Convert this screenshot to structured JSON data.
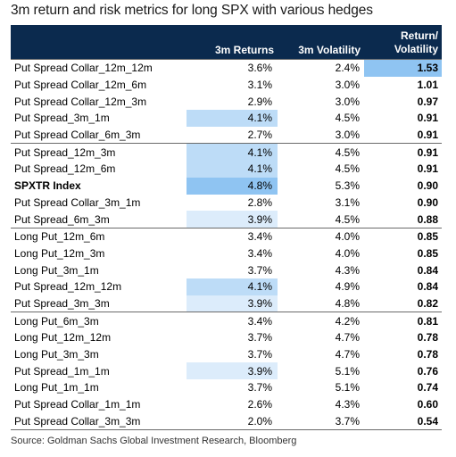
{
  "title": "3m return and risk metrics for long SPX with various hedges",
  "headers": {
    "name": "",
    "returns": "3m Returns",
    "volatility": "3m Volatility",
    "ratio_line1": "Return/",
    "ratio_line2": "Volatility"
  },
  "colors": {
    "header_bg": "#0b2a4e",
    "highlight_strong": "#8fc4f2",
    "highlight_medium": "#bddcf7",
    "highlight_light": "#dcecfb"
  },
  "rows": [
    {
      "name": "Put Spread Collar_12m_12m",
      "returns": "3.6%",
      "volatility": "2.4%",
      "ratio": "1.53",
      "group_start": true
    },
    {
      "name": "Put Spread Collar_12m_6m",
      "returns": "3.1%",
      "volatility": "3.0%",
      "ratio": "1.01"
    },
    {
      "name": "Put Spread Collar_12m_3m",
      "returns": "2.9%",
      "volatility": "3.0%",
      "ratio": "0.97"
    },
    {
      "name": "Put Spread_3m_1m",
      "returns": "4.1%",
      "volatility": "4.5%",
      "ratio": "0.91"
    },
    {
      "name": "Put Spread Collar_6m_3m",
      "returns": "2.7%",
      "volatility": "3.0%",
      "ratio": "0.91"
    },
    {
      "name": "Put Spread_12m_3m",
      "returns": "4.1%",
      "volatility": "4.5%",
      "ratio": "0.91",
      "group_start": true
    },
    {
      "name": "Put Spread_12m_6m",
      "returns": "4.1%",
      "volatility": "4.5%",
      "ratio": "0.91"
    },
    {
      "name": "SPXTR Index",
      "returns": "4.8%",
      "volatility": "5.3%",
      "ratio": "0.90",
      "bold": true
    },
    {
      "name": "Put Spread Collar_3m_1m",
      "returns": "2.8%",
      "volatility": "3.1%",
      "ratio": "0.90"
    },
    {
      "name": "Put Spread_6m_3m",
      "returns": "3.9%",
      "volatility": "4.5%",
      "ratio": "0.88"
    },
    {
      "name": "Long Put_12m_6m",
      "returns": "3.4%",
      "volatility": "4.0%",
      "ratio": "0.85",
      "group_start": true
    },
    {
      "name": "Long Put_12m_3m",
      "returns": "3.4%",
      "volatility": "4.0%",
      "ratio": "0.85"
    },
    {
      "name": "Long Put_3m_1m",
      "returns": "3.7%",
      "volatility": "4.3%",
      "ratio": "0.84"
    },
    {
      "name": "Put Spread_12m_12m",
      "returns": "4.1%",
      "volatility": "4.9%",
      "ratio": "0.84"
    },
    {
      "name": "Put Spread_3m_3m",
      "returns": "3.9%",
      "volatility": "4.8%",
      "ratio": "0.82"
    },
    {
      "name": "Long Put_6m_3m",
      "returns": "3.4%",
      "volatility": "4.2%",
      "ratio": "0.81",
      "group_start": true
    },
    {
      "name": "Long Put_12m_12m",
      "returns": "3.7%",
      "volatility": "4.7%",
      "ratio": "0.78"
    },
    {
      "name": "Long Put_3m_3m",
      "returns": "3.7%",
      "volatility": "4.7%",
      "ratio": "0.78"
    },
    {
      "name": "Put Spread_1m_1m",
      "returns": "3.9%",
      "volatility": "5.1%",
      "ratio": "0.76"
    },
    {
      "name": "Long Put_1m_1m",
      "returns": "3.7%",
      "volatility": "5.1%",
      "ratio": "0.74"
    },
    {
      "name": "Put Spread Collar_1m_1m",
      "returns": "2.6%",
      "volatility": "4.3%",
      "ratio": "0.60"
    },
    {
      "name": "Put Spread Collar_3m_3m",
      "returns": "2.0%",
      "volatility": "3.7%",
      "ratio": "0.54",
      "last": true
    }
  ],
  "source": "Source: Goldman Sachs Global Investment Research, Bloomberg"
}
